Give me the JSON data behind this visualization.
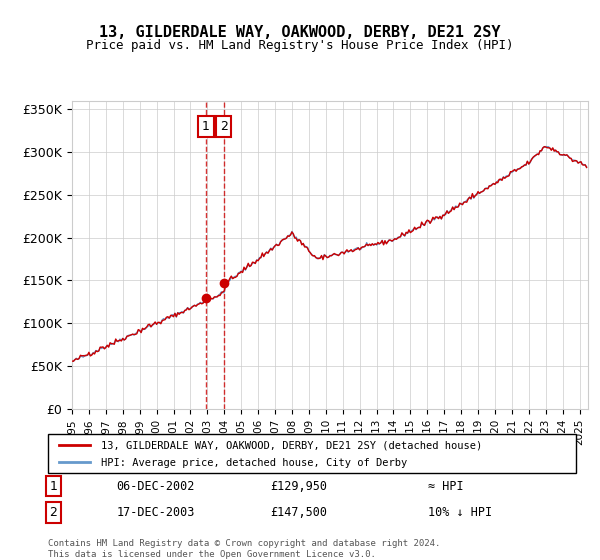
{
  "title": "13, GILDERDALE WAY, OAKWOOD, DERBY, DE21 2SY",
  "subtitle": "Price paid vs. HM Land Registry's House Price Index (HPI)",
  "legend_line1": "13, GILDERDALE WAY, OAKWOOD, DERBY, DE21 2SY (detached house)",
  "legend_line2": "HPI: Average price, detached house, City of Derby",
  "table_row1_num": "1",
  "table_row1_date": "06-DEC-2002",
  "table_row1_price": "£129,950",
  "table_row1_hpi": "≈ HPI",
  "table_row2_num": "2",
  "table_row2_date": "17-DEC-2003",
  "table_row2_price": "£147,500",
  "table_row2_hpi": "10% ↓ HPI",
  "footer1": "Contains HM Land Registry data © Crown copyright and database right 2024.",
  "footer2": "This data is licensed under the Open Government Licence v3.0.",
  "transaction_dates": [
    2002.92,
    2003.96
  ],
  "transaction_prices": [
    129950,
    147500
  ],
  "vline_colors": [
    "#cc0000",
    "#cc0000"
  ],
  "marker_color": "#cc0000",
  "hpi_color": "#6699cc",
  "price_color": "#cc0000",
  "ylim": [
    0,
    360000
  ],
  "yticks": [
    0,
    50000,
    100000,
    150000,
    200000,
    250000,
    300000,
    350000
  ],
  "xlim_start": 1995.0,
  "xlim_end": 2025.5
}
